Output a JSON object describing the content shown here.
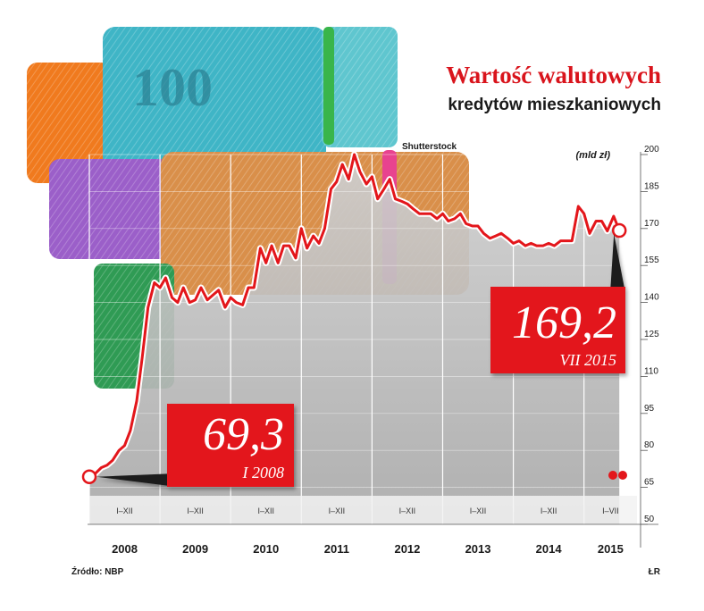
{
  "title": "Wartość walutowych",
  "subtitle": "kredytów mieszkaniowych",
  "unit": "(mld zł)",
  "photo_credit": "Shutterstock",
  "source": "Źródło: NBP",
  "author": "ŁR",
  "colors": {
    "line": "#e3161b",
    "callout": "#e3161b",
    "title": "#d9141c",
    "fill": "#bdbdbd",
    "dark": "#1a1a1a"
  },
  "image_desc_icon": "swiss-franc-banknote-rolls",
  "chart_data": {
    "type": "area",
    "ylabel": "",
    "ylim": [
      50,
      200
    ],
    "y_ticks": [
      50,
      65,
      80,
      95,
      110,
      125,
      140,
      155,
      170,
      185,
      200
    ],
    "x_range": [
      2008.0,
      2015.75
    ],
    "years": [
      "2008",
      "2009",
      "2010",
      "2011",
      "2012",
      "2013",
      "2014",
      "2015"
    ],
    "period_labels": [
      "I–XII",
      "I–XII",
      "I–XII",
      "I–XII",
      "I–XII",
      "I–XII",
      "I–XII",
      "I–VII"
    ],
    "grid": true,
    "series": [
      {
        "points": [
          [
            2008.0,
            69.3
          ],
          [
            2008.08,
            70.5
          ],
          [
            2008.17,
            73
          ],
          [
            2008.25,
            74
          ],
          [
            2008.33,
            76
          ],
          [
            2008.42,
            80
          ],
          [
            2008.5,
            82
          ],
          [
            2008.58,
            88
          ],
          [
            2008.67,
            100
          ],
          [
            2008.75,
            118
          ],
          [
            2008.83,
            138
          ],
          [
            2008.92,
            148
          ],
          [
            2009.0,
            146
          ],
          [
            2009.08,
            150
          ],
          [
            2009.17,
            142
          ],
          [
            2009.25,
            140
          ],
          [
            2009.33,
            146
          ],
          [
            2009.42,
            140
          ],
          [
            2009.5,
            141
          ],
          [
            2009.58,
            146
          ],
          [
            2009.67,
            141
          ],
          [
            2009.75,
            143
          ],
          [
            2009.83,
            145
          ],
          [
            2009.92,
            138
          ],
          [
            2010.0,
            142
          ],
          [
            2010.08,
            140
          ],
          [
            2010.17,
            139
          ],
          [
            2010.25,
            146
          ],
          [
            2010.33,
            146
          ],
          [
            2010.42,
            162
          ],
          [
            2010.5,
            156
          ],
          [
            2010.58,
            163
          ],
          [
            2010.67,
            156
          ],
          [
            2010.75,
            163
          ],
          [
            2010.83,
            163
          ],
          [
            2010.92,
            158
          ],
          [
            2011.0,
            170
          ],
          [
            2011.08,
            162
          ],
          [
            2011.17,
            167
          ],
          [
            2011.25,
            164
          ],
          [
            2011.33,
            170
          ],
          [
            2011.42,
            186
          ],
          [
            2011.5,
            189
          ],
          [
            2011.58,
            196
          ],
          [
            2011.67,
            190
          ],
          [
            2011.75,
            200
          ],
          [
            2011.83,
            193
          ],
          [
            2011.92,
            188
          ],
          [
            2012.0,
            191
          ],
          [
            2012.08,
            182
          ],
          [
            2012.17,
            186
          ],
          [
            2012.25,
            190
          ],
          [
            2012.33,
            182
          ],
          [
            2012.42,
            181
          ],
          [
            2012.5,
            180
          ],
          [
            2012.58,
            178
          ],
          [
            2012.67,
            176
          ],
          [
            2012.75,
            176
          ],
          [
            2012.83,
            176
          ],
          [
            2012.92,
            174
          ],
          [
            2013.0,
            176
          ],
          [
            2013.08,
            173
          ],
          [
            2013.17,
            174
          ],
          [
            2013.25,
            176
          ],
          [
            2013.33,
            172
          ],
          [
            2013.42,
            171
          ],
          [
            2013.5,
            171
          ],
          [
            2013.58,
            168
          ],
          [
            2013.67,
            166
          ],
          [
            2013.75,
            167
          ],
          [
            2013.83,
            168
          ],
          [
            2013.92,
            166
          ],
          [
            2014.0,
            164
          ],
          [
            2014.08,
            165
          ],
          [
            2014.17,
            163
          ],
          [
            2014.25,
            164
          ],
          [
            2014.33,
            163
          ],
          [
            2014.42,
            163
          ],
          [
            2014.5,
            164
          ],
          [
            2014.58,
            163
          ],
          [
            2014.67,
            165
          ],
          [
            2014.75,
            165
          ],
          [
            2014.83,
            165
          ],
          [
            2014.92,
            179
          ],
          [
            2015.0,
            176
          ],
          [
            2015.08,
            168
          ],
          [
            2015.17,
            173
          ],
          [
            2015.25,
            173
          ],
          [
            2015.33,
            169
          ],
          [
            2015.42,
            175
          ],
          [
            2015.5,
            169.2
          ]
        ]
      }
    ],
    "callouts": [
      {
        "value": "69,3",
        "date": "I 2008"
      },
      {
        "value": "169,2",
        "date": "VII 2015"
      }
    ]
  }
}
